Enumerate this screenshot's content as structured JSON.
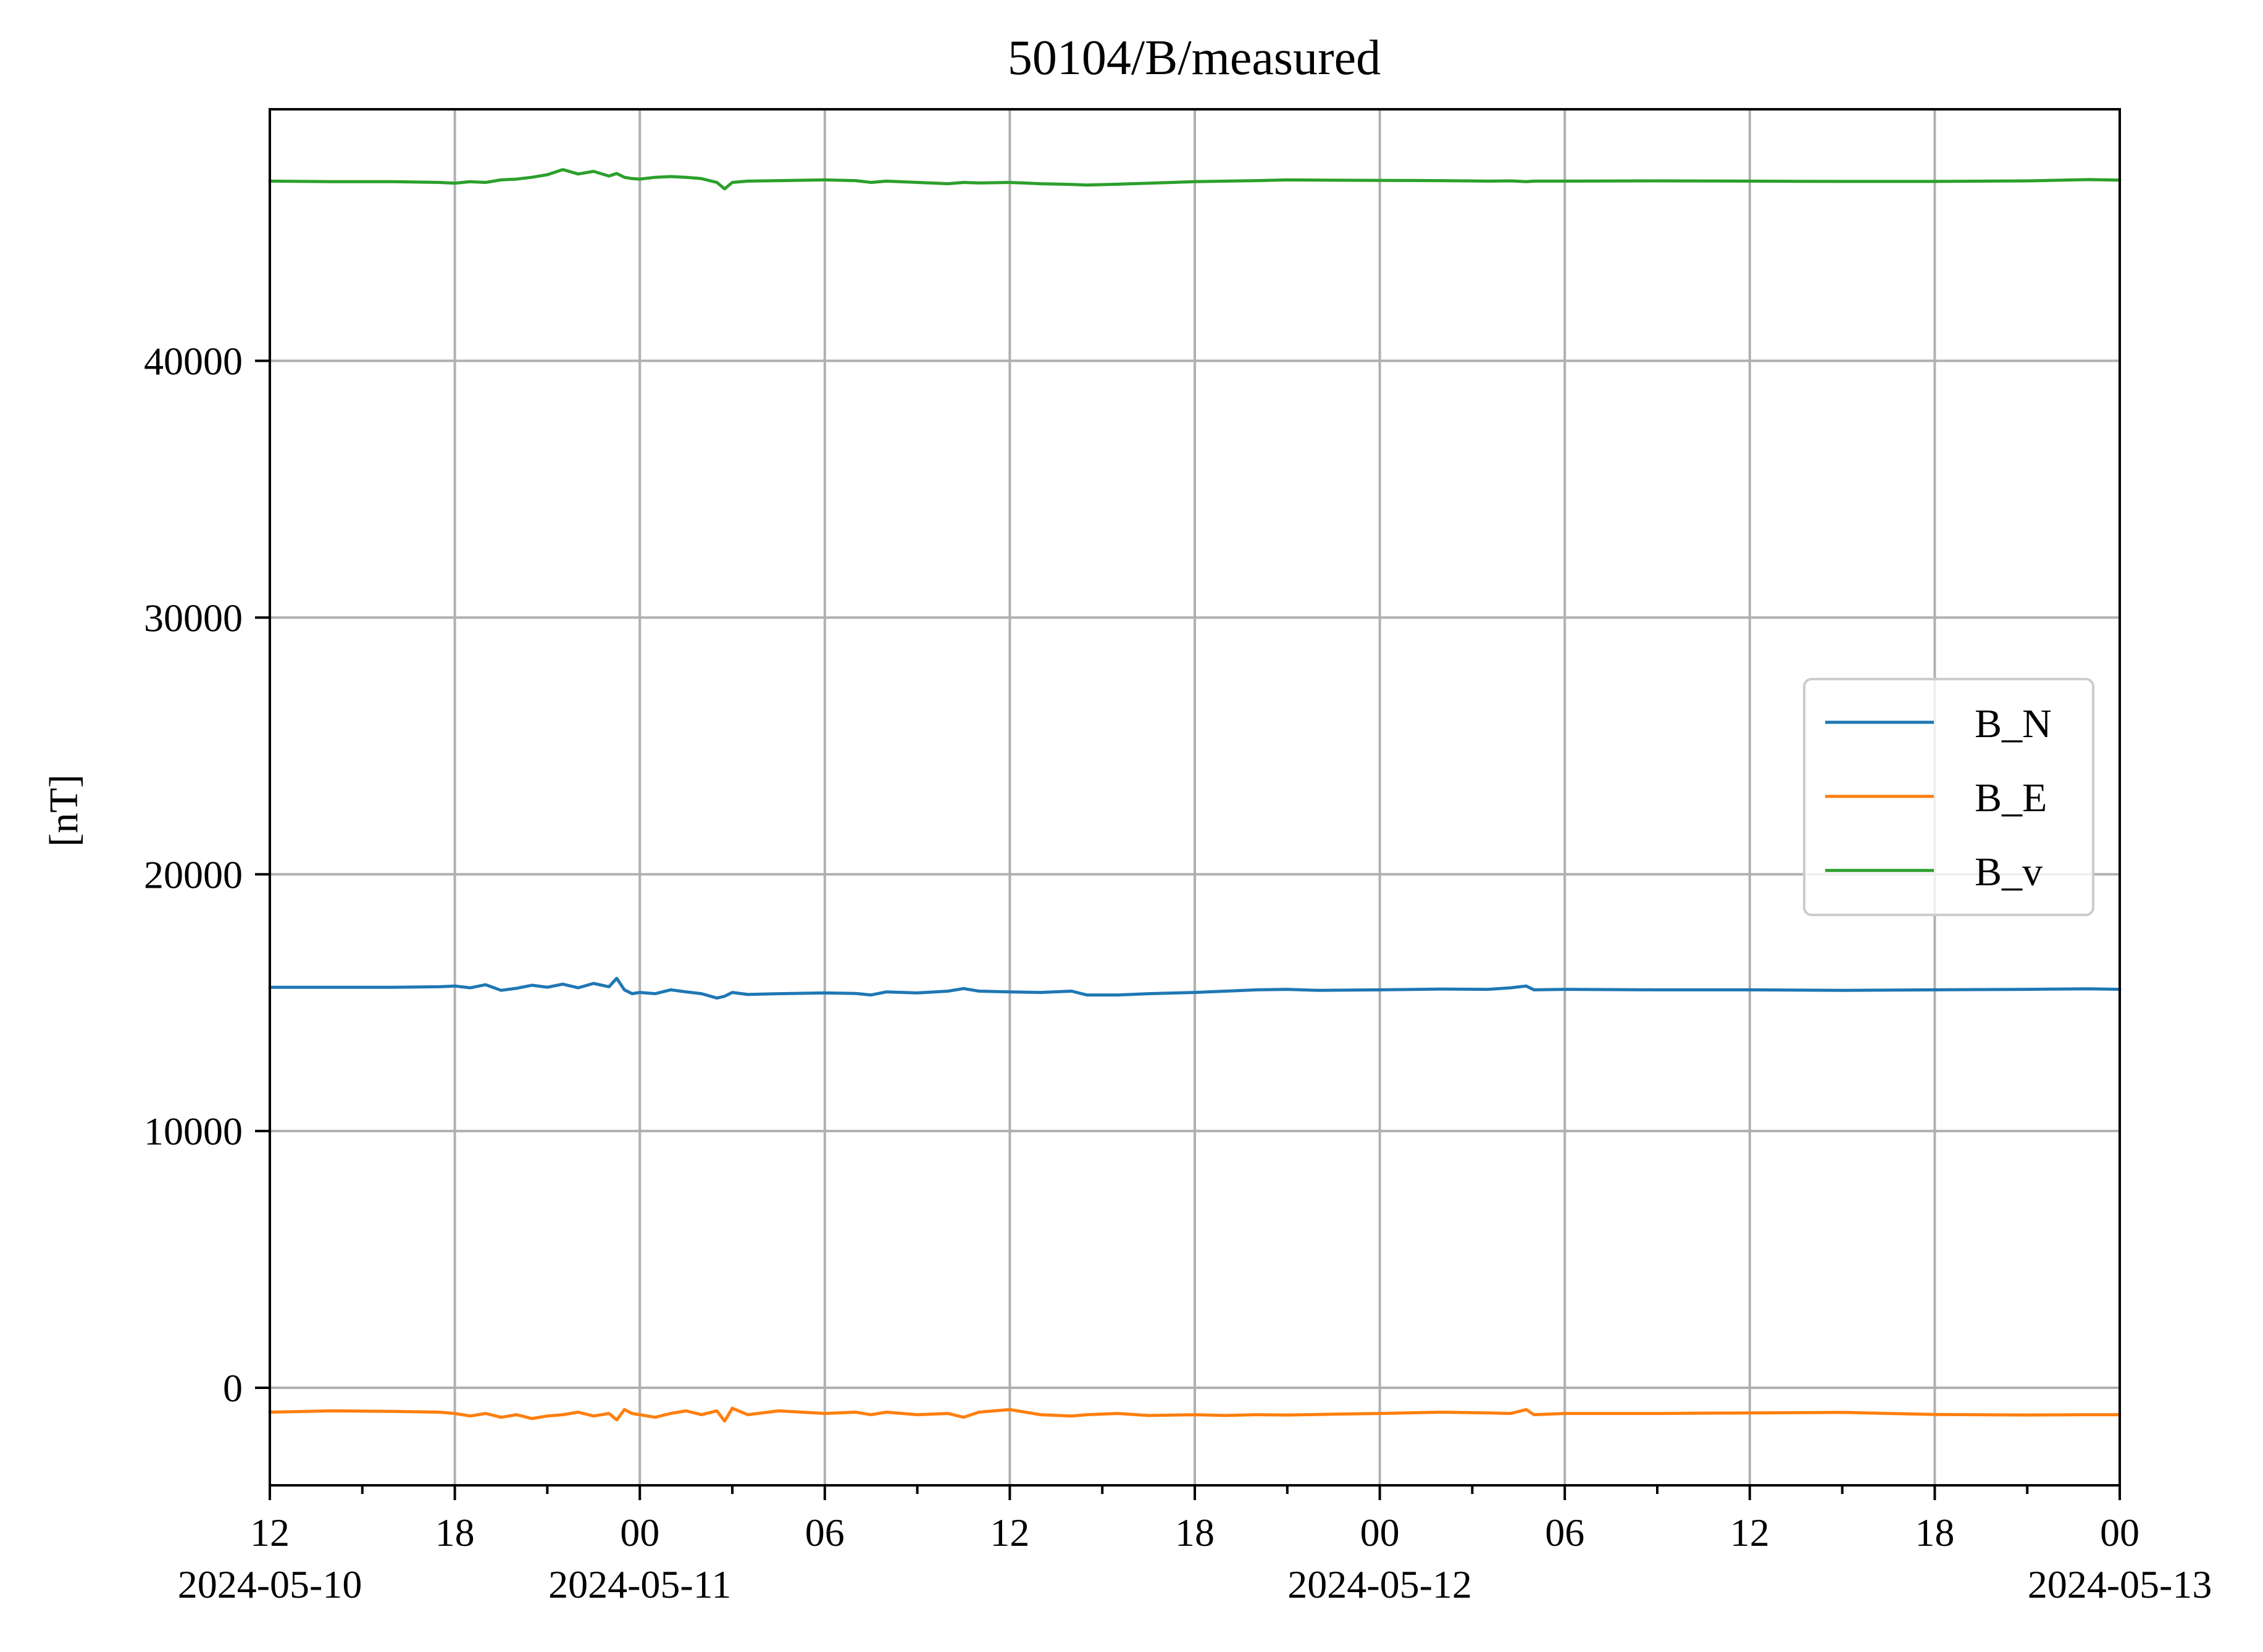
{
  "chart_data": {
    "type": "line",
    "title": "50104/B/measured",
    "xlabel": "",
    "ylabel": "[nT]",
    "x_range": [
      "2024-05-10T12:00",
      "2024-05-13T00:00"
    ],
    "ylim": [
      -3800,
      49800
    ],
    "grid": true,
    "legend_position": "center-right",
    "x_major_ticks": [
      {
        "value": "2024-05-10T12:00",
        "label": "12",
        "date": "2024-05-10"
      },
      {
        "value": "2024-05-10T18:00",
        "label": "18",
        "date": ""
      },
      {
        "value": "2024-05-11T00:00",
        "label": "00",
        "date": "2024-05-11"
      },
      {
        "value": "2024-05-11T06:00",
        "label": "06",
        "date": ""
      },
      {
        "value": "2024-05-11T12:00",
        "label": "12",
        "date": ""
      },
      {
        "value": "2024-05-11T18:00",
        "label": "18",
        "date": ""
      },
      {
        "value": "2024-05-12T00:00",
        "label": "00",
        "date": "2024-05-12"
      },
      {
        "value": "2024-05-12T06:00",
        "label": "06",
        "date": ""
      },
      {
        "value": "2024-05-12T12:00",
        "label": "12",
        "date": ""
      },
      {
        "value": "2024-05-12T18:00",
        "label": "18",
        "date": ""
      },
      {
        "value": "2024-05-13T00:00",
        "label": "00",
        "date": "2024-05-13"
      }
    ],
    "x_minor_ticks": [
      "2024-05-10T15:00",
      "2024-05-10T21:00",
      "2024-05-11T03:00",
      "2024-05-11T09:00",
      "2024-05-11T15:00",
      "2024-05-11T21:00",
      "2024-05-12T03:00",
      "2024-05-12T09:00",
      "2024-05-12T15:00",
      "2024-05-12T21:00"
    ],
    "y_ticks": [
      0,
      10000,
      20000,
      30000,
      40000
    ],
    "series": [
      {
        "name": "B_N",
        "color": "#1f77b4",
        "points": [
          [
            "2024-05-10T12:00",
            15600
          ],
          [
            "2024-05-10T14:00",
            15600
          ],
          [
            "2024-05-10T16:00",
            15600
          ],
          [
            "2024-05-10T17:30",
            15620
          ],
          [
            "2024-05-10T18:00",
            15650
          ],
          [
            "2024-05-10T18:30",
            15580
          ],
          [
            "2024-05-10T19:00",
            15700
          ],
          [
            "2024-05-10T19:30",
            15480
          ],
          [
            "2024-05-10T20:00",
            15560
          ],
          [
            "2024-05-10T20:30",
            15680
          ],
          [
            "2024-05-10T21:00",
            15600
          ],
          [
            "2024-05-10T21:30",
            15720
          ],
          [
            "2024-05-10T22:00",
            15580
          ],
          [
            "2024-05-10T22:30",
            15750
          ],
          [
            "2024-05-10T23:00",
            15620
          ],
          [
            "2024-05-10T23:15",
            15950
          ],
          [
            "2024-05-10T23:30",
            15500
          ],
          [
            "2024-05-10T23:45",
            15350
          ],
          [
            "2024-05-11T00:00",
            15400
          ],
          [
            "2024-05-11T00:30",
            15350
          ],
          [
            "2024-05-11T01:00",
            15500
          ],
          [
            "2024-05-11T01:30",
            15420
          ],
          [
            "2024-05-11T02:00",
            15350
          ],
          [
            "2024-05-11T02:30",
            15180
          ],
          [
            "2024-05-11T02:45",
            15250
          ],
          [
            "2024-05-11T03:00",
            15400
          ],
          [
            "2024-05-11T03:30",
            15320
          ],
          [
            "2024-05-11T04:30",
            15350
          ],
          [
            "2024-05-11T06:00",
            15380
          ],
          [
            "2024-05-11T07:00",
            15360
          ],
          [
            "2024-05-11T07:30",
            15300
          ],
          [
            "2024-05-11T08:00",
            15420
          ],
          [
            "2024-05-11T09:00",
            15380
          ],
          [
            "2024-05-11T10:00",
            15450
          ],
          [
            "2024-05-11T10:30",
            15550
          ],
          [
            "2024-05-11T11:00",
            15450
          ],
          [
            "2024-05-11T12:00",
            15420
          ],
          [
            "2024-05-11T13:00",
            15400
          ],
          [
            "2024-05-11T14:00",
            15450
          ],
          [
            "2024-05-11T14:30",
            15300
          ],
          [
            "2024-05-11T15:30",
            15300
          ],
          [
            "2024-05-11T16:30",
            15350
          ],
          [
            "2024-05-11T18:00",
            15400
          ],
          [
            "2024-05-11T19:00",
            15450
          ],
          [
            "2024-05-11T20:00",
            15500
          ],
          [
            "2024-05-11T21:00",
            15520
          ],
          [
            "2024-05-11T22:00",
            15480
          ],
          [
            "2024-05-12T00:00",
            15500
          ],
          [
            "2024-05-12T02:00",
            15530
          ],
          [
            "2024-05-12T03:30",
            15520
          ],
          [
            "2024-05-12T04:15",
            15580
          ],
          [
            "2024-05-12T04:45",
            15650
          ],
          [
            "2024-05-12T05:00",
            15500
          ],
          [
            "2024-05-12T06:00",
            15520
          ],
          [
            "2024-05-12T09:00",
            15500
          ],
          [
            "2024-05-12T12:00",
            15500
          ],
          [
            "2024-05-12T15:00",
            15480
          ],
          [
            "2024-05-12T18:00",
            15500
          ],
          [
            "2024-05-12T21:00",
            15520
          ],
          [
            "2024-05-12T23:00",
            15540
          ],
          [
            "2024-05-13T00:00",
            15520
          ]
        ]
      },
      {
        "name": "B_E",
        "color": "#ff7f0e",
        "points": [
          [
            "2024-05-10T12:00",
            -950
          ],
          [
            "2024-05-10T14:00",
            -900
          ],
          [
            "2024-05-10T16:00",
            -920
          ],
          [
            "2024-05-10T17:30",
            -950
          ],
          [
            "2024-05-10T18:00",
            -1000
          ],
          [
            "2024-05-10T18:30",
            -1100
          ],
          [
            "2024-05-10T19:00",
            -1000
          ],
          [
            "2024-05-10T19:30",
            -1150
          ],
          [
            "2024-05-10T20:00",
            -1050
          ],
          [
            "2024-05-10T20:30",
            -1200
          ],
          [
            "2024-05-10T21:00",
            -1100
          ],
          [
            "2024-05-10T21:30",
            -1050
          ],
          [
            "2024-05-10T22:00",
            -950
          ],
          [
            "2024-05-10T22:30",
            -1100
          ],
          [
            "2024-05-10T23:00",
            -1000
          ],
          [
            "2024-05-10T23:15",
            -1250
          ],
          [
            "2024-05-10T23:30",
            -850
          ],
          [
            "2024-05-10T23:45",
            -1000
          ],
          [
            "2024-05-11T00:00",
            -1050
          ],
          [
            "2024-05-11T00:30",
            -1150
          ],
          [
            "2024-05-11T01:00",
            -1000
          ],
          [
            "2024-05-11T01:30",
            -900
          ],
          [
            "2024-05-11T02:00",
            -1050
          ],
          [
            "2024-05-11T02:30",
            -900
          ],
          [
            "2024-05-11T02:45",
            -1300
          ],
          [
            "2024-05-11T03:00",
            -800
          ],
          [
            "2024-05-11T03:30",
            -1050
          ],
          [
            "2024-05-11T04:30",
            -900
          ],
          [
            "2024-05-11T06:00",
            -1000
          ],
          [
            "2024-05-11T07:00",
            -950
          ],
          [
            "2024-05-11T07:30",
            -1050
          ],
          [
            "2024-05-11T08:00",
            -950
          ],
          [
            "2024-05-11T09:00",
            -1050
          ],
          [
            "2024-05-11T10:00",
            -1000
          ],
          [
            "2024-05-11T10:30",
            -1150
          ],
          [
            "2024-05-11T11:00",
            -950
          ],
          [
            "2024-05-11T12:00",
            -850
          ],
          [
            "2024-05-11T13:00",
            -1050
          ],
          [
            "2024-05-11T14:00",
            -1100
          ],
          [
            "2024-05-11T14:30",
            -1050
          ],
          [
            "2024-05-11T15:30",
            -1000
          ],
          [
            "2024-05-11T16:30",
            -1080
          ],
          [
            "2024-05-11T18:00",
            -1050
          ],
          [
            "2024-05-11T19:00",
            -1080
          ],
          [
            "2024-05-11T20:00",
            -1050
          ],
          [
            "2024-05-11T21:00",
            -1060
          ],
          [
            "2024-05-11T22:00",
            -1040
          ],
          [
            "2024-05-12T00:00",
            -1000
          ],
          [
            "2024-05-12T02:00",
            -950
          ],
          [
            "2024-05-12T03:30",
            -980
          ],
          [
            "2024-05-12T04:15",
            -1000
          ],
          [
            "2024-05-12T04:45",
            -850
          ],
          [
            "2024-05-12T05:00",
            -1050
          ],
          [
            "2024-05-12T06:00",
            -1000
          ],
          [
            "2024-05-12T09:00",
            -1000
          ],
          [
            "2024-05-12T12:00",
            -980
          ],
          [
            "2024-05-12T15:00",
            -960
          ],
          [
            "2024-05-12T18:00",
            -1040
          ],
          [
            "2024-05-12T21:00",
            -1060
          ],
          [
            "2024-05-12T23:00",
            -1050
          ],
          [
            "2024-05-13T00:00",
            -1050
          ]
        ]
      },
      {
        "name": "B_v",
        "color": "#2ca02c",
        "points": [
          [
            "2024-05-10T12:00",
            47000
          ],
          [
            "2024-05-10T14:00",
            46980
          ],
          [
            "2024-05-10T16:00",
            46980
          ],
          [
            "2024-05-10T17:30",
            46950
          ],
          [
            "2024-05-10T18:00",
            46920
          ],
          [
            "2024-05-10T18:30",
            46980
          ],
          [
            "2024-05-10T19:00",
            46950
          ],
          [
            "2024-05-10T19:30",
            47050
          ],
          [
            "2024-05-10T20:00",
            47080
          ],
          [
            "2024-05-10T20:30",
            47150
          ],
          [
            "2024-05-10T21:00",
            47250
          ],
          [
            "2024-05-10T21:30",
            47450
          ],
          [
            "2024-05-10T22:00",
            47280
          ],
          [
            "2024-05-10T22:30",
            47380
          ],
          [
            "2024-05-10T23:00",
            47200
          ],
          [
            "2024-05-10T23:15",
            47300
          ],
          [
            "2024-05-10T23:30",
            47150
          ],
          [
            "2024-05-10T23:45",
            47100
          ],
          [
            "2024-05-11T00:00",
            47080
          ],
          [
            "2024-05-11T00:30",
            47150
          ],
          [
            "2024-05-11T01:00",
            47180
          ],
          [
            "2024-05-11T01:30",
            47150
          ],
          [
            "2024-05-11T02:00",
            47100
          ],
          [
            "2024-05-11T02:30",
            46950
          ],
          [
            "2024-05-11T02:45",
            46700
          ],
          [
            "2024-05-11T03:00",
            46950
          ],
          [
            "2024-05-11T03:30",
            47000
          ],
          [
            "2024-05-11T04:30",
            47020
          ],
          [
            "2024-05-11T06:00",
            47050
          ],
          [
            "2024-05-11T07:00",
            47020
          ],
          [
            "2024-05-11T07:30",
            46950
          ],
          [
            "2024-05-11T08:00",
            47000
          ],
          [
            "2024-05-11T09:00",
            46950
          ],
          [
            "2024-05-11T10:00",
            46900
          ],
          [
            "2024-05-11T10:30",
            46950
          ],
          [
            "2024-05-11T11:00",
            46930
          ],
          [
            "2024-05-11T12:00",
            46950
          ],
          [
            "2024-05-11T13:00",
            46900
          ],
          [
            "2024-05-11T14:00",
            46870
          ],
          [
            "2024-05-11T14:30",
            46850
          ],
          [
            "2024-05-11T15:30",
            46880
          ],
          [
            "2024-05-11T16:30",
            46920
          ],
          [
            "2024-05-11T18:00",
            46980
          ],
          [
            "2024-05-11T19:00",
            47000
          ],
          [
            "2024-05-11T20:00",
            47020
          ],
          [
            "2024-05-11T21:00",
            47050
          ],
          [
            "2024-05-11T22:00",
            47040
          ],
          [
            "2024-05-12T00:00",
            47030
          ],
          [
            "2024-05-12T02:00",
            47020
          ],
          [
            "2024-05-12T03:30",
            47000
          ],
          [
            "2024-05-12T04:15",
            47010
          ],
          [
            "2024-05-12T04:45",
            46980
          ],
          [
            "2024-05-12T05:00",
            47000
          ],
          [
            "2024-05-12T06:00",
            47000
          ],
          [
            "2024-05-12T09:00",
            47010
          ],
          [
            "2024-05-12T12:00",
            47000
          ],
          [
            "2024-05-12T15:00",
            46990
          ],
          [
            "2024-05-12T18:00",
            46990
          ],
          [
            "2024-05-12T21:00",
            47010
          ],
          [
            "2024-05-12T23:00",
            47060
          ],
          [
            "2024-05-13T00:00",
            47040
          ]
        ]
      }
    ]
  }
}
